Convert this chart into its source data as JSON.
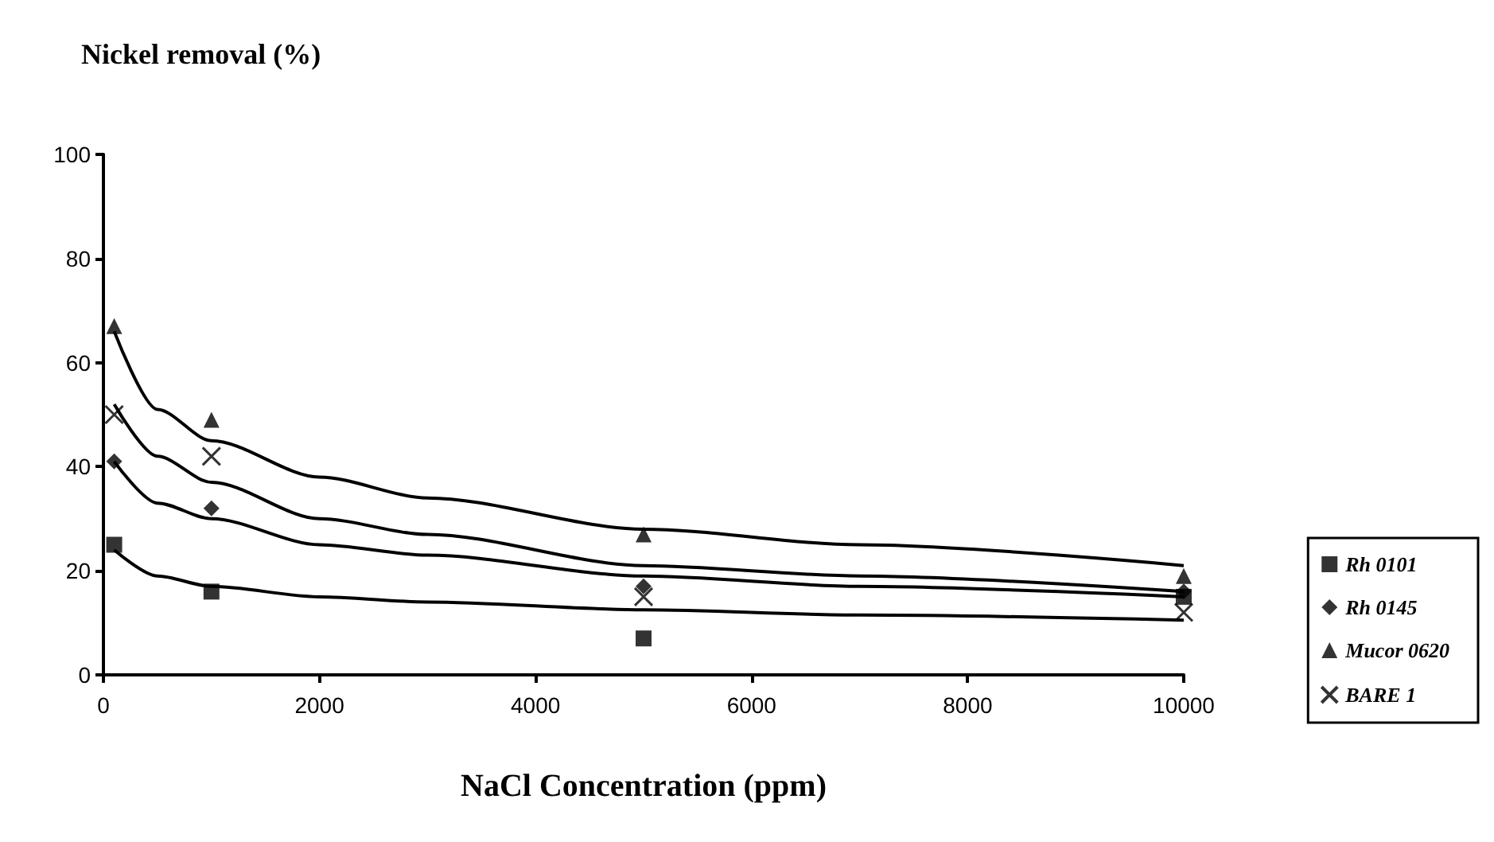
{
  "chart_data": {
    "type": "scatter",
    "title": "Nickel removal (%)",
    "xlabel": "NaCl Concentration (ppm)",
    "x": [
      100,
      1000,
      5000,
      10000
    ],
    "series": [
      {
        "name": "Rh 0101",
        "color": "#000000",
        "marker": "square",
        "values": [
          25,
          16,
          7,
          15
        ]
      },
      {
        "name": "Rh 0145",
        "color": "#000000",
        "marker": "diamond",
        "values": [
          41,
          32,
          17,
          16
        ]
      },
      {
        "name": "Mucor 0620",
        "color": "#000000",
        "marker": "triangle",
        "values": [
          67,
          49,
          27,
          19
        ]
      },
      {
        "name": "BARE 1",
        "color": "#000000",
        "marker": "cross",
        "values": [
          50,
          42,
          15,
          12
        ]
      },
      {
        "type": "line",
        "color": "#000000",
        "x": [
          100,
          500,
          1000,
          2000,
          3000,
          5000,
          7000,
          10000
        ],
        "values": [
          24,
          19,
          17,
          15,
          14,
          12.5,
          11.5,
          10.5
        ]
      },
      {
        "type": "line",
        "color": "#000000",
        "x": [
          100,
          500,
          1000,
          2000,
          3000,
          5000,
          7000,
          10000
        ],
        "values": [
          41,
          33,
          30,
          25,
          23,
          19,
          17,
          15
        ]
      },
      {
        "type": "line",
        "color": "#000000",
        "x": [
          100,
          500,
          1000,
          2000,
          3000,
          5000,
          7000,
          10000
        ],
        "values": [
          66,
          51,
          45,
          38,
          34,
          28,
          25,
          21
        ]
      },
      {
        "type": "line",
        "color": "#000000",
        "x": [
          100,
          500,
          1000,
          2000,
          3000,
          5000,
          7000,
          10000
        ],
        "values": [
          52,
          42,
          37,
          30,
          27,
          21,
          19,
          16
        ]
      }
    ],
    "xlim": [
      0,
      10000
    ],
    "xticks": [
      0,
      2000,
      4000,
      6000,
      8000,
      10000
    ],
    "ylim": [
      0,
      100
    ],
    "yticks": [
      0,
      20,
      40,
      60,
      80,
      100
    ],
    "grid": false,
    "legend": "right",
    "line_style": "solid"
  }
}
